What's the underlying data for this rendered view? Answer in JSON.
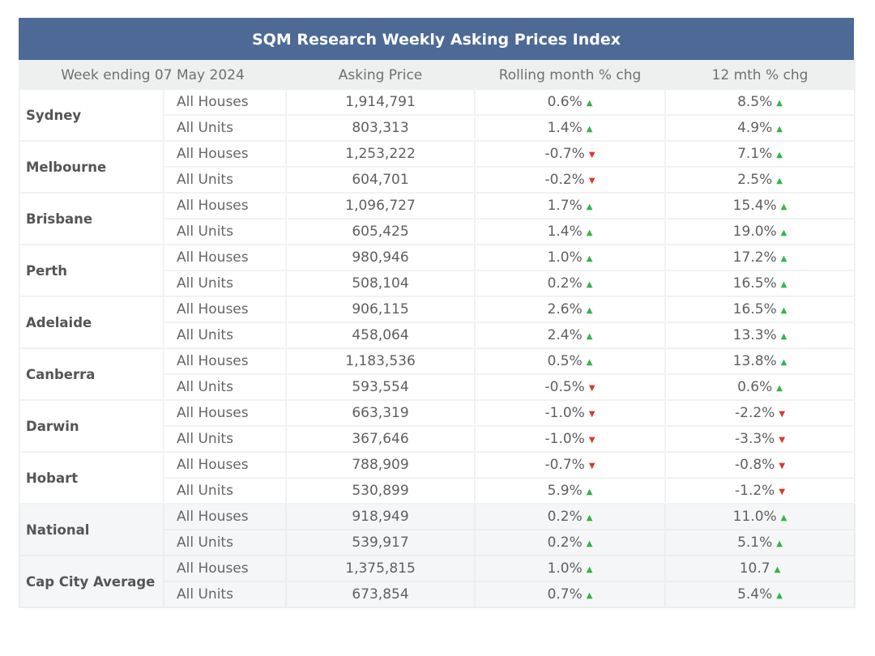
{
  "title": "SQM Research Weekly Asking Prices Index",
  "headers": [
    "Week ending 07 May 2024",
    "Asking Price",
    "Rolling month % chg",
    "12 mth % chg"
  ],
  "colors": {
    "header_bg": "#4d6a96",
    "up": "#34b34a",
    "down": "#d93a2c"
  },
  "icons": {
    "up": "▲",
    "down": "▼"
  },
  "groups": [
    {
      "city": "Sydney",
      "rows": [
        {
          "type": "All Houses",
          "price": "1,914,791",
          "month": "0.6%",
          "month_dir": "up",
          "year": "8.5%",
          "year_dir": "up"
        },
        {
          "type": "All Units",
          "price": "803,313",
          "month": "1.4%",
          "month_dir": "up",
          "year": "4.9%",
          "year_dir": "up"
        }
      ]
    },
    {
      "city": "Melbourne",
      "rows": [
        {
          "type": "All Houses",
          "price": "1,253,222",
          "month": "-0.7%",
          "month_dir": "down",
          "year": "7.1%",
          "year_dir": "up"
        },
        {
          "type": "All Units",
          "price": "604,701",
          "month": "-0.2%",
          "month_dir": "down",
          "year": "2.5%",
          "year_dir": "up"
        }
      ]
    },
    {
      "city": "Brisbane",
      "rows": [
        {
          "type": "All Houses",
          "price": "1,096,727",
          "month": "1.7%",
          "month_dir": "up",
          "year": "15.4%",
          "year_dir": "up"
        },
        {
          "type": "All Units",
          "price": "605,425",
          "month": "1.4%",
          "month_dir": "up",
          "year": "19.0%",
          "year_dir": "up"
        }
      ]
    },
    {
      "city": "Perth",
      "rows": [
        {
          "type": "All Houses",
          "price": "980,946",
          "month": "1.0%",
          "month_dir": "up",
          "year": "17.2%",
          "year_dir": "up"
        },
        {
          "type": "All Units",
          "price": "508,104",
          "month": "0.2%",
          "month_dir": "up",
          "year": "16.5%",
          "year_dir": "up"
        }
      ]
    },
    {
      "city": "Adelaide",
      "rows": [
        {
          "type": "All Houses",
          "price": "906,115",
          "month": "2.6%",
          "month_dir": "up",
          "year": "16.5%",
          "year_dir": "up"
        },
        {
          "type": "All Units",
          "price": "458,064",
          "month": "2.4%",
          "month_dir": "up",
          "year": "13.3%",
          "year_dir": "up"
        }
      ]
    },
    {
      "city": "Canberra",
      "rows": [
        {
          "type": "All Houses",
          "price": "1,183,536",
          "month": "0.5%",
          "month_dir": "up",
          "year": "13.8%",
          "year_dir": "up"
        },
        {
          "type": "All Units",
          "price": "593,554",
          "month": "-0.5%",
          "month_dir": "down",
          "year": "0.6%",
          "year_dir": "up"
        }
      ]
    },
    {
      "city": "Darwin",
      "rows": [
        {
          "type": "All Houses",
          "price": "663,319",
          "month": "-1.0%",
          "month_dir": "down",
          "year": "-2.2%",
          "year_dir": "down"
        },
        {
          "type": "All Units",
          "price": "367,646",
          "month": "-1.0%",
          "month_dir": "down",
          "year": "-3.3%",
          "year_dir": "down"
        }
      ]
    },
    {
      "city": "Hobart",
      "rows": [
        {
          "type": "All Houses",
          "price": "788,909",
          "month": "-0.7%",
          "month_dir": "down",
          "year": "-0.8%",
          "year_dir": "down"
        },
        {
          "type": "All Units",
          "price": "530,899",
          "month": "5.9%",
          "month_dir": "up",
          "year": "-1.2%",
          "year_dir": "down"
        }
      ]
    },
    {
      "city": "National",
      "shaded": true,
      "rows": [
        {
          "type": "All Houses",
          "price": "918,949",
          "month": "0.2%",
          "month_dir": "up",
          "year": "11.0%",
          "year_dir": "up"
        },
        {
          "type": "All Units",
          "price": "539,917",
          "month": "0.2%",
          "month_dir": "up",
          "year": "5.1%",
          "year_dir": "up"
        }
      ]
    },
    {
      "city": "Cap City Average",
      "shaded": true,
      "rows": [
        {
          "type": "All Houses",
          "price": "1,375,815",
          "month": "1.0%",
          "month_dir": "up",
          "year": "10.7",
          "year_dir": "up"
        },
        {
          "type": "All Units",
          "price": "673,854",
          "month": "0.7%",
          "month_dir": "up",
          "year": "5.4%",
          "year_dir": "up"
        }
      ]
    }
  ]
}
